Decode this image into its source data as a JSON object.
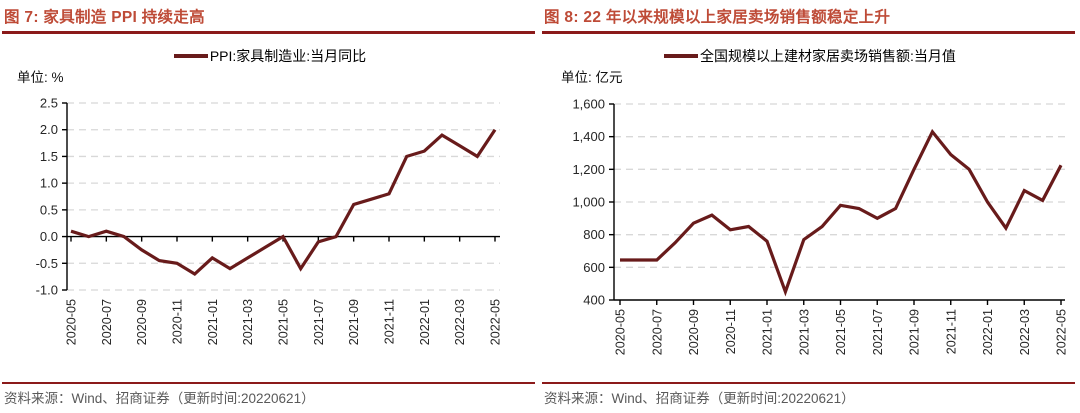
{
  "colors": {
    "title": "#BE4B37",
    "rule": "#8B1A1A",
    "series_line": "#681B1B",
    "source_text": "#595959",
    "axis_text": "#262626",
    "gridline": "#D8D8D8",
    "axis_line": "#000000"
  },
  "charts": [
    {
      "title": "图 7:  家具制造 PPI 持续走高",
      "legend": "PPI:家具制造业:当月同比",
      "unit_label": "单位:  %",
      "source_note": "资料来源：Wind、招商证券（更新时间:20220621）",
      "chart_data": {
        "type": "line",
        "series_name": "PPI:家具制造业:当月同比",
        "x": [
          "2020-05",
          "2020-06",
          "2020-07",
          "2020-08",
          "2020-09",
          "2020-10",
          "2020-11",
          "2020-12",
          "2021-01",
          "2021-02",
          "2021-03",
          "2021-04",
          "2021-05",
          "2021-06",
          "2021-07",
          "2021-08",
          "2021-09",
          "2021-10",
          "2021-11",
          "2021-12",
          "2022-01",
          "2022-02",
          "2022-03",
          "2022-04",
          "2022-05"
        ],
        "values": [
          0.1,
          0.0,
          0.1,
          0.0,
          -0.25,
          -0.45,
          -0.5,
          -0.7,
          -0.4,
          -0.6,
          -0.4,
          -0.2,
          0.0,
          -0.6,
          -0.1,
          0.0,
          0.6,
          0.7,
          0.8,
          1.5,
          1.6,
          1.9,
          1.7,
          1.5,
          2.0
        ],
        "ylim": [
          -1.0,
          2.5
        ],
        "y_ticks": [
          "2.5",
          "2.0",
          "1.5",
          "1.0",
          "0.5",
          "0.0",
          "-0.5",
          "-1.0"
        ],
        "x_tick_every": 2,
        "x_axis_at_value": 0,
        "grid": "horizontal-dashed",
        "legend_position": "top"
      }
    },
    {
      "title": "图 8:  22 年以来规模以上家居卖场销售额稳定上升",
      "legend": "全国规模以上建材家居卖场销售额:当月值",
      "unit_label": "单位:  亿元",
      "source_note": "资料来源：Wind、招商证券（更新时间:20220621）",
      "chart_data": {
        "type": "line",
        "series_name": "全国规模以上建材家居卖场销售额:当月值",
        "x": [
          "2020-05",
          "2020-06",
          "2020-07",
          "2020-08",
          "2020-09",
          "2020-10",
          "2020-11",
          "2020-12",
          "2021-01",
          "2021-02",
          "2021-03",
          "2021-04",
          "2021-05",
          "2021-06",
          "2021-07",
          "2021-08",
          "2021-09",
          "2021-10",
          "2021-11",
          "2021-12",
          "2022-01",
          "2022-02",
          "2022-03",
          "2022-04",
          "2022-05"
        ],
        "values": [
          645,
          645,
          645,
          750,
          870,
          920,
          830,
          850,
          760,
          450,
          770,
          850,
          980,
          960,
          900,
          960,
          1200,
          1430,
          1290,
          1200,
          1000,
          840,
          1070,
          1010,
          1225
        ],
        "ylim": [
          400,
          1600
        ],
        "y_ticks": [
          "1,600",
          "1,400",
          "1,200",
          "1,000",
          "800",
          "600",
          "400"
        ],
        "x_tick_every": 2,
        "x_axis_at_value": 400,
        "grid": "horizontal-dashed",
        "legend_position": "top"
      }
    }
  ]
}
